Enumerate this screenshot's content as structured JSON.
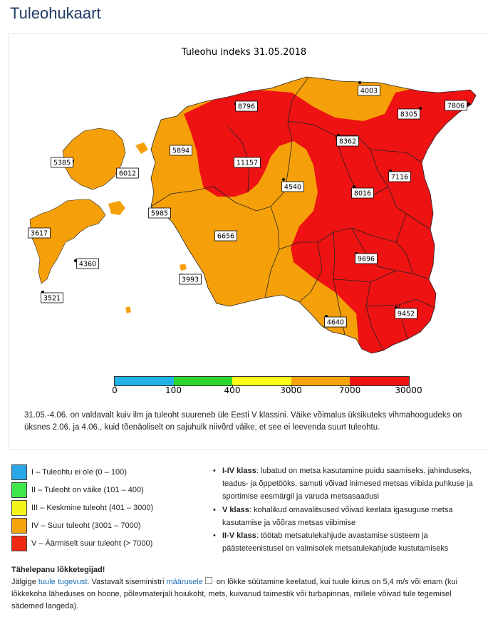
{
  "page": {
    "title": "Tuleohukaart"
  },
  "map": {
    "title": "Tuleohu indeks 31.05.2018",
    "stations": [
      {
        "label": "8796",
        "class": "V"
      },
      {
        "label": "4003",
        "class": "IV"
      },
      {
        "label": "8305",
        "class": "V"
      },
      {
        "label": "7806",
        "class": "V"
      },
      {
        "label": "5894",
        "class": "IV"
      },
      {
        "label": "8362",
        "class": "V"
      },
      {
        "label": "5385",
        "class": "IV"
      },
      {
        "label": "6012",
        "class": "IV"
      },
      {
        "label": "11157",
        "class": "V"
      },
      {
        "label": "7116",
        "class": "V"
      },
      {
        "label": "4540",
        "class": "IV"
      },
      {
        "label": "8016",
        "class": "V"
      },
      {
        "label": "5985",
        "class": "IV"
      },
      {
        "label": "3617",
        "class": "IV"
      },
      {
        "label": "6656",
        "class": "IV"
      },
      {
        "label": "4360",
        "class": "IV"
      },
      {
        "label": "9696",
        "class": "V"
      },
      {
        "label": "3993",
        "class": "IV"
      },
      {
        "label": "3521",
        "class": "IV"
      },
      {
        "label": "4640",
        "class": "IV"
      },
      {
        "label": "9452",
        "class": "V"
      }
    ],
    "colorbar": {
      "ticks": [
        "0",
        "100",
        "400",
        "3000",
        "7000",
        "30000"
      ],
      "colors": [
        "#1fb3e8",
        "#2bd72b",
        "#fbfb1a",
        "#f8a20c",
        "#f01414"
      ]
    },
    "colors": {
      "orange": "#f6a009",
      "red": "#ee1212",
      "background": "#ffffff"
    }
  },
  "forecast": {
    "text": "31.05.-4.06. on valdavalt kuiv ilm ja tuleoht suureneb üle Eesti V klassini. Väike võimalus üksikuteks vihmahoogudeks on üksnes 2.06. ja 4.06., kuid tõenäoliselt on sajuhulk niivõrd väike, et see ei leevenda suurt tuleohtu."
  },
  "legend": [
    {
      "label": "I – Tuleohtu ei ole (0 – 100)",
      "color": "#2aa7e6"
    },
    {
      "label": "II – Tuleoht on väike (101 – 400)",
      "color": "#3ee84a"
    },
    {
      "label": "III – Keskmine tuleoht (401 – 3000)",
      "color": "#f4f41a"
    },
    {
      "label": "IV – Suur tuleoht (3001 – 7000)",
      "color": "#f5a30d"
    },
    {
      "label": "V – Äärmiselt suur tuleoht (> 7000)",
      "color": "#ee2a12"
    }
  ],
  "classes": [
    {
      "title": "I-IV klass",
      "text": ": lubatud on metsa kasutamine puidu saamiseks, jahinduseks, teadus- ja õppetööks, samuti võivad inimesed metsas viibida puhkuse ja sportimise eesmärgil ja varuda metsasaadusi"
    },
    {
      "title": "V klass",
      "text": ": kohalikud omavalitsused võivad keelata igasuguse metsa kasutamise ja võõras metsas viibimise"
    },
    {
      "title": "II-V klass",
      "text": ": töötab metsatulekahjude avastamise süsteem ja päästeteenistusel on valmisolek metsatulekahjude kustutamiseks"
    }
  ],
  "notice": {
    "heading": "Tähelepanu lõkketegijad!",
    "part1": "Jälgige ",
    "link1": "tuule tugevust",
    "part2": ". Vastavalt siseministri ",
    "link2": "määrusele",
    "part3": " on lõkke süütamine keelatud, kui tuule kiirus on 5,4 m/s või enam (kui lõkkekoha läheduses on hoone, põlevmaterjali hoiukoht, mets, kuivanud taimestik või turbapinnas, millele võivad tule tegemisel sädemed langeda)."
  }
}
